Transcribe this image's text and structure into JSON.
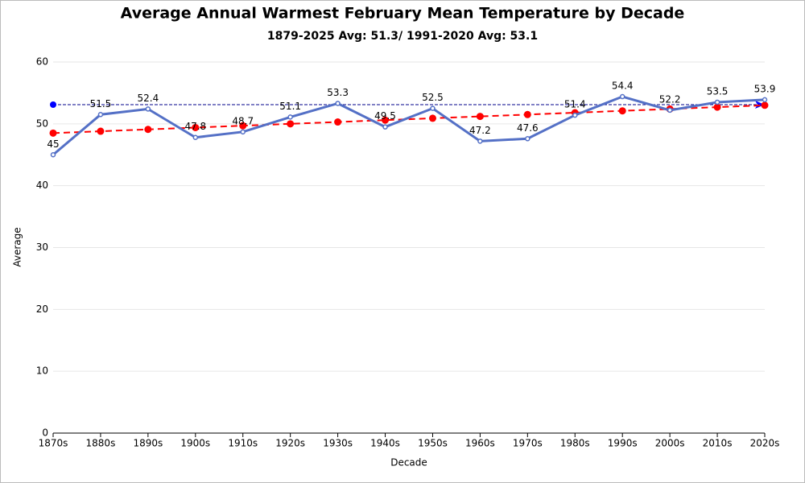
{
  "chart_data": {
    "type": "line",
    "title": "Average Annual Warmest February Mean Temperature by Decade",
    "subtitle": "1879-2025 Avg: 51.3/ 1991-2020 Avg: 53.1",
    "x_label": "Decade",
    "y_label": "Average",
    "categories": [
      "1870s",
      "1880s",
      "1890s",
      "1900s",
      "1910s",
      "1920s",
      "1930s",
      "1940s",
      "1950s",
      "1960s",
      "1970s",
      "1980s",
      "1990s",
      "2000s",
      "2010s",
      "2020s"
    ],
    "series": [
      {
        "color": "#5470c6",
        "data_labels": true,
        "values": [
          45,
          51.5,
          52.4,
          47.8,
          48.7,
          51.1,
          53.3,
          49.5,
          52.5,
          47.2,
          47.6,
          51.4,
          54.4,
          52.2,
          53.5,
          53.9
        ]
      },
      {
        "color": "#ff0000",
        "dashed": true,
        "data_labels": false,
        "values": [
          48.5,
          48.8,
          49.1,
          49.4,
          49.7,
          50.0,
          50.3,
          50.6,
          50.9,
          51.2,
          51.5,
          51.8,
          52.1,
          52.4,
          52.7,
          53.0
        ]
      }
    ],
    "reference_line": {
      "value": 53.1,
      "color": "#00008b"
    },
    "ylim": [
      0,
      60
    ],
    "yticks": [
      0,
      10,
      20,
      30,
      40,
      50,
      60
    ],
    "grid": true
  }
}
